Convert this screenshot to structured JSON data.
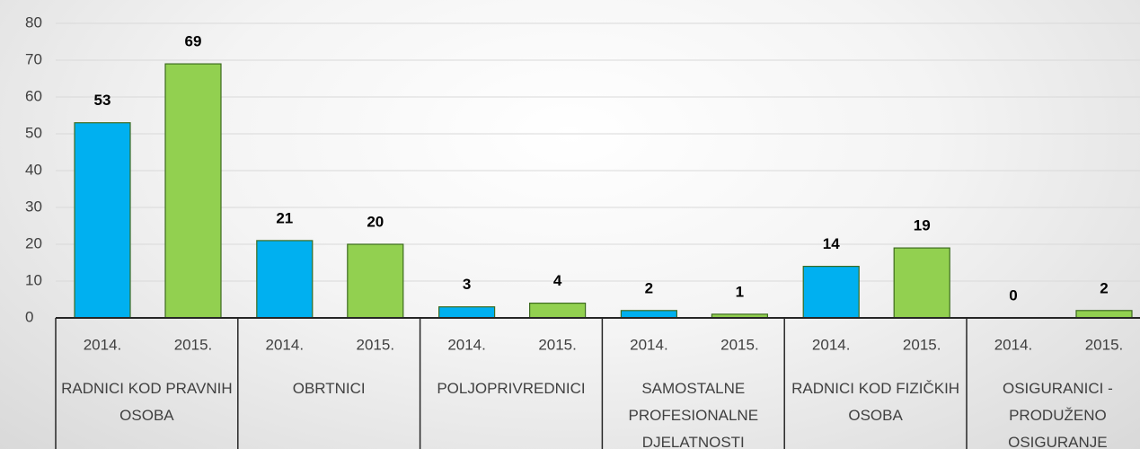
{
  "chart_data": {
    "type": "bar",
    "categories": [
      "RADNICI KOD PRAVNIH OSOBA",
      "OBRTNICI",
      "POLJOPRIVREDNICI",
      "SAMOSTALNE PROFESIONALNE DJELATNOSTI",
      "RADNICI KOD FIZIČKIH OSOBA",
      "OSIGURANICI - PRODUŽENO OSIGURANJE"
    ],
    "series": [
      {
        "name": "2014.",
        "color": "#00b0f0",
        "values": [
          53,
          21,
          3,
          2,
          14,
          0
        ]
      },
      {
        "name": "2015.",
        "color": "#92d050",
        "values": [
          69,
          20,
          4,
          1,
          19,
          2
        ]
      }
    ],
    "ylim": [
      0,
      80
    ],
    "yticks": [
      0,
      10,
      20,
      30,
      40,
      50,
      60,
      70,
      80
    ],
    "grid": true
  }
}
